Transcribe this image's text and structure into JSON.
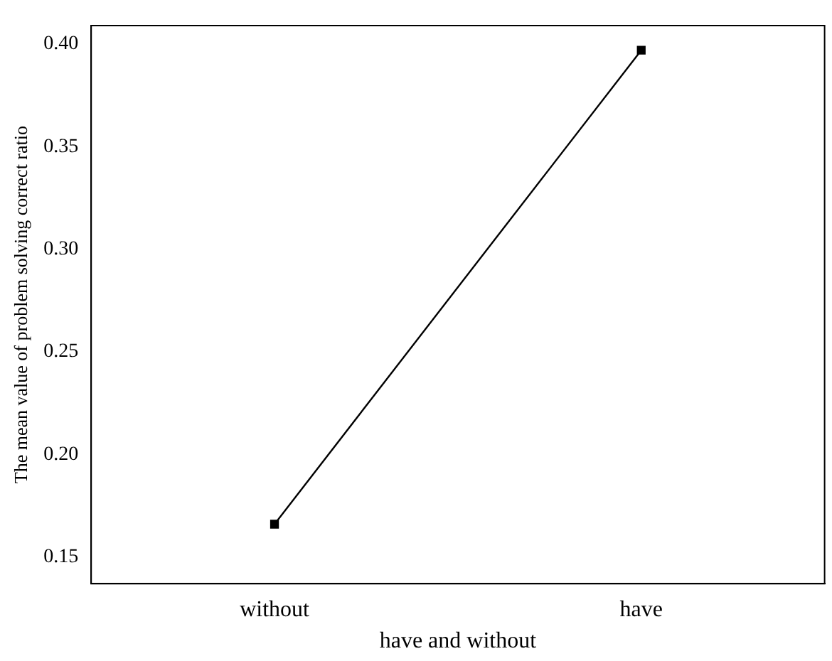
{
  "chart_data": {
    "type": "line",
    "xlabel": "have and without",
    "ylabel": "The mean value of problem solving correct ratio",
    "categories": [
      "without",
      "have"
    ],
    "series": [
      {
        "color": "#000000",
        "values": [
          0.166,
          0.397
        ]
      }
    ],
    "ylim": [
      0.137,
      0.409
    ],
    "yticks": [
      {
        "value": 0.15,
        "label": "0.15"
      },
      {
        "value": 0.2,
        "label": "0.20"
      },
      {
        "value": 0.25,
        "label": "0.25"
      },
      {
        "value": 0.3,
        "label": "0.30"
      },
      {
        "value": 0.35,
        "label": "0.35"
      },
      {
        "value": 0.4,
        "label": "0.40"
      }
    ],
    "grid": false,
    "legend": false,
    "marker": "square",
    "line_style": "solid"
  }
}
